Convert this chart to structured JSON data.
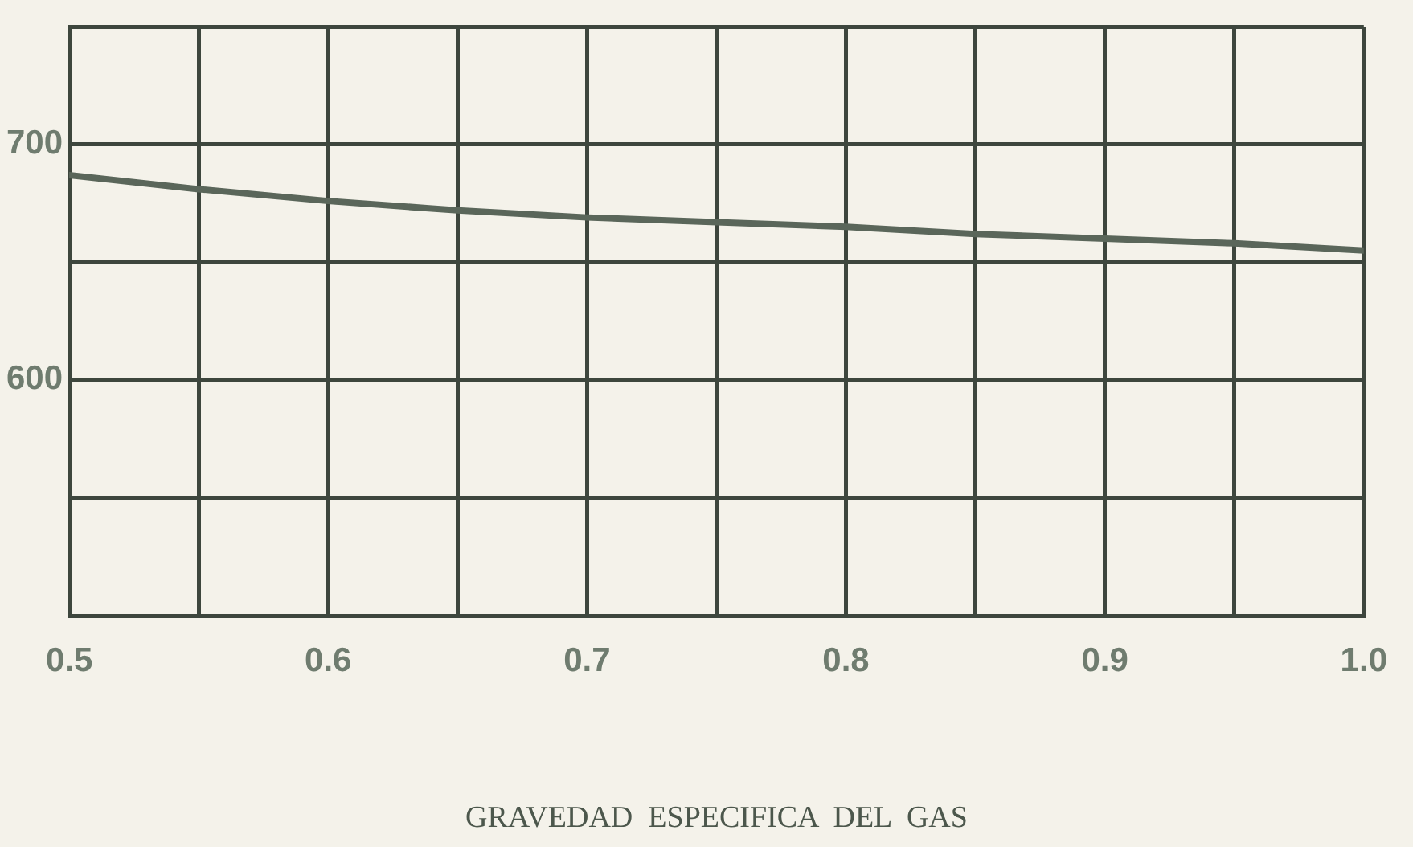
{
  "chart_data": {
    "type": "line",
    "xlabel": "GRAVEDAD  ESPECIFICA  DEL  GAS",
    "x": [
      0.5,
      0.55,
      0.6,
      0.65,
      0.7,
      0.75,
      0.8,
      0.85,
      0.9,
      0.95,
      1.0
    ],
    "series": [
      {
        "color": "#5a665a",
        "values": [
          687,
          681,
          676,
          672,
          669,
          667,
          665,
          662,
          660,
          658,
          655
        ]
      }
    ],
    "xlim": [
      0.5,
      1.0
    ],
    "xticks": [
      0.5,
      {
        "value": 0.55,
        "label": null
      },
      0.6,
      {
        "value": 0.65,
        "label": null
      },
      0.7,
      {
        "value": 0.75,
        "label": null
      },
      0.8,
      {
        "value": 0.85,
        "label": null
      },
      0.9,
      {
        "value": 0.95,
        "label": null
      },
      {
        "value": 1.0,
        "label": "1.0"
      }
    ],
    "ylim": [
      500,
      750
    ],
    "yticks": [
      {
        "value": 500,
        "label": null
      },
      {
        "value": 550,
        "label": null
      },
      600,
      {
        "value": 650,
        "label": null
      },
      700,
      {
        "value": 750,
        "label": null
      }
    ],
    "grid": true,
    "marker": "none",
    "line_style": "solid"
  }
}
